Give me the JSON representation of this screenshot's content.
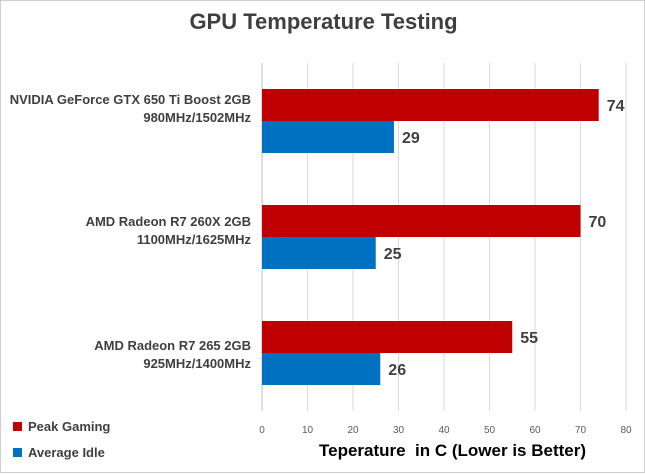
{
  "chart_data": {
    "type": "bar",
    "orientation": "horizontal",
    "title": "GPU Temperature Testing",
    "xlabel": "Teperature  in C (Lower is Better)",
    "ylabel": "",
    "xlim": [
      0,
      80
    ],
    "ticks": [
      "0",
      "10",
      "20",
      "30",
      "40",
      "50",
      "60",
      "70",
      "80"
    ],
    "grid": "vertical",
    "legend_position": "bottom-left",
    "categories": [
      {
        "line1": "NVIDIA GeForce GTX 650 Ti Boost 2GB",
        "line2": "980MHz/1502MHz"
      },
      {
        "line1": "AMD Radeon R7 260X 2GB",
        "line2": "1100MHz/1625MHz"
      },
      {
        "line1": "AMD Radeon R7 265 2GB",
        "line2": "925MHz/1400MHz"
      }
    ],
    "series": [
      {
        "name": "Peak Gaming",
        "color": "#c00000",
        "values": [
          74,
          70,
          55
        ]
      },
      {
        "name": "Average Idle",
        "color": "#0070c0",
        "values": [
          29,
          25,
          26
        ]
      }
    ]
  }
}
